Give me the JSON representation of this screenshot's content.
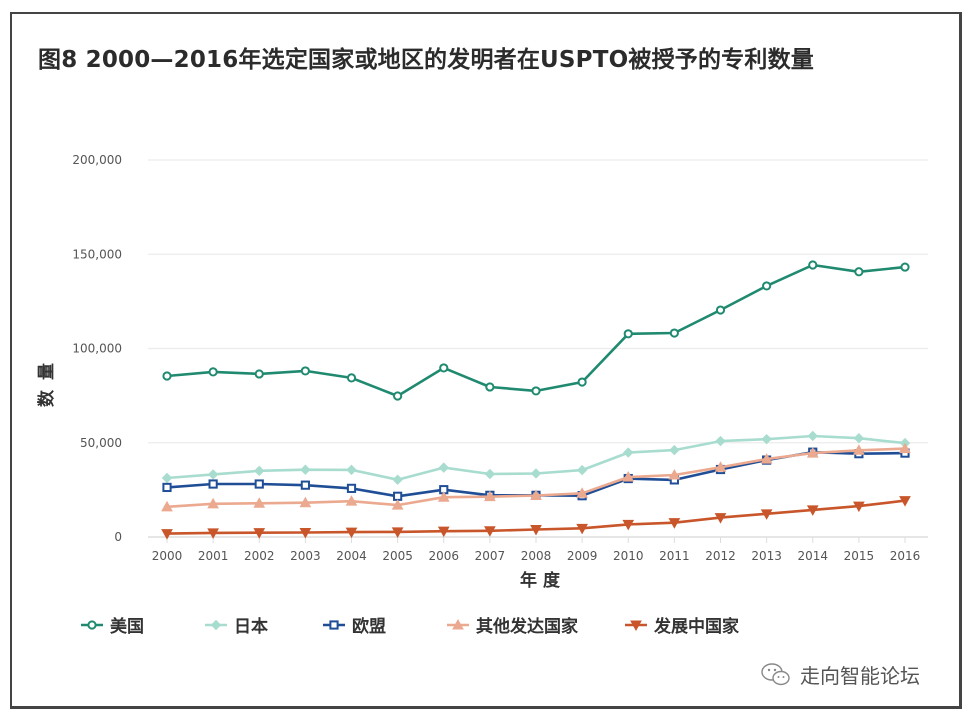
{
  "title": "图8  2000—2016年选定国家或地区的发明者在USPTO被授予的专利数量",
  "watermark": "走向智能论坛",
  "chart_data": {
    "type": "line",
    "title": "图8  2000—2016年选定国家或地区的发明者在USPTO被授予的专利数量",
    "xlabel": "年 度",
    "ylabel": "数 量",
    "x": [
      "2000",
      "2001",
      "2002",
      "2003",
      "2004",
      "2005",
      "2006",
      "2007",
      "2008",
      "2009",
      "2010",
      "2011",
      "2012",
      "2013",
      "2014",
      "2015",
      "2016"
    ],
    "ylim": [
      0,
      200000
    ],
    "yticks": [
      0,
      50000,
      100000,
      150000,
      200000
    ],
    "ytick_labels": [
      "0",
      "50,000",
      "100,000",
      "150,000",
      "200,000"
    ],
    "grid": true,
    "legend_position": "bottom",
    "series": [
      {
        "name": "美国",
        "color": "#1f8a70",
        "marker": "circle",
        "values": [
          85400,
          87600,
          86500,
          88100,
          84400,
          74800,
          89700,
          79600,
          77500,
          82200,
          107800,
          108200,
          120400,
          133200,
          144300,
          140700,
          143200
        ]
      },
      {
        "name": "日本",
        "color": "#a8dccf",
        "marker": "diamond",
        "values": [
          31300,
          33200,
          35100,
          35700,
          35600,
          30400,
          36800,
          33400,
          33700,
          35500,
          44800,
          46100,
          50900,
          51900,
          53600,
          52400,
          49800
        ]
      },
      {
        "name": "欧盟",
        "color": "#1f4e96",
        "marker": "square",
        "values": [
          26300,
          28100,
          28100,
          27500,
          25800,
          21600,
          25100,
          22100,
          22100,
          21900,
          31000,
          30300,
          35800,
          40800,
          45000,
          44200,
          44500
        ]
      },
      {
        "name": "其他发达国家",
        "color": "#eba98f",
        "marker": "triangle-up",
        "values": [
          16000,
          17600,
          17900,
          18200,
          19000,
          16900,
          21100,
          21400,
          22000,
          23200,
          31800,
          32900,
          37000,
          41300,
          44500,
          46000,
          46900
        ]
      },
      {
        "name": "发展中国家",
        "color": "#c8562a",
        "marker": "triangle-down",
        "values": [
          1800,
          2200,
          2300,
          2400,
          2600,
          2700,
          3100,
          3300,
          4000,
          4600,
          6700,
          7600,
          10300,
          12300,
          14400,
          16400,
          19300
        ]
      }
    ]
  }
}
